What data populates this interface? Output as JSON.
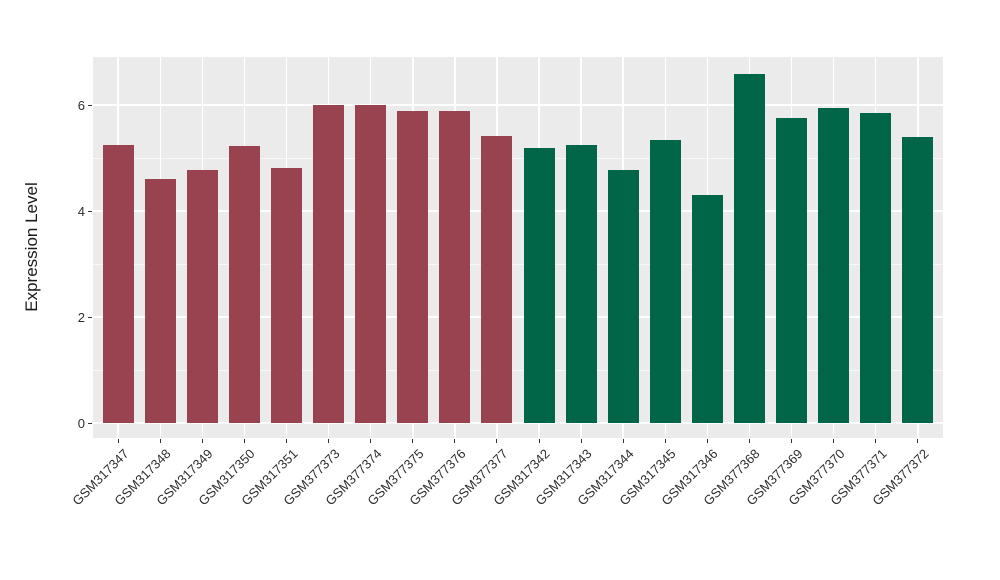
{
  "chart_data": {
    "type": "bar",
    "title": "",
    "ylabel": "Expression Level",
    "xlabel": "",
    "categories": [
      "GSM317347",
      "GSM317348",
      "GSM317349",
      "GSM317350",
      "GSM317351",
      "GSM377373",
      "GSM377374",
      "GSM377375",
      "GSM377376",
      "GSM377377",
      "GSM317342",
      "GSM317343",
      "GSM317344",
      "GSM317345",
      "GSM317346",
      "GSM377368",
      "GSM377369",
      "GSM377370",
      "GSM377371",
      "GSM377372"
    ],
    "values": [
      5.25,
      4.62,
      4.78,
      5.23,
      4.82,
      6.01,
      6.01,
      5.89,
      5.89,
      5.42,
      5.2,
      5.26,
      4.79,
      5.34,
      4.31,
      6.6,
      5.77,
      5.95,
      5.86,
      5.4
    ],
    "bar_group_index": [
      0,
      0,
      0,
      0,
      0,
      0,
      0,
      0,
      0,
      0,
      1,
      1,
      1,
      1,
      1,
      1,
      1,
      1,
      1,
      1
    ],
    "group_colors": [
      "#9A4350",
      "#016647"
    ],
    "yticks_major": [
      0,
      2,
      4,
      6
    ],
    "yticks_minor": [
      1,
      3,
      5
    ],
    "ylim": [
      -0.28,
      6.93
    ],
    "grid": "on",
    "legend": "none",
    "panel_bg": "#EBEBEB",
    "grid_color": "#FFFFFF",
    "tick_text_color": "#2e2e2e"
  }
}
